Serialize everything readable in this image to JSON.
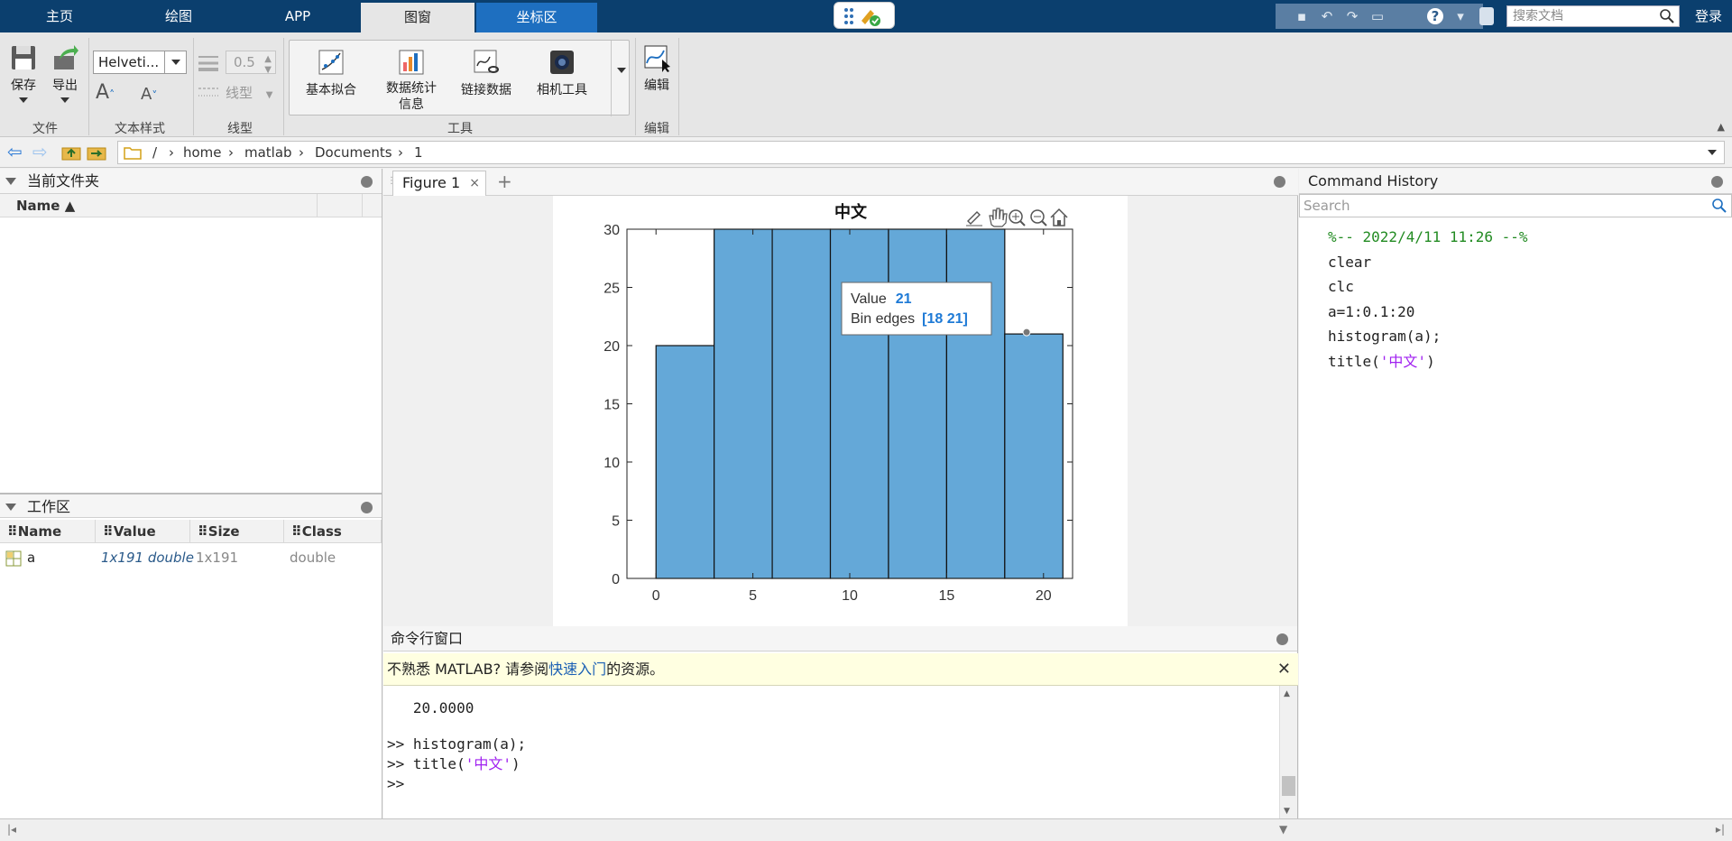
{
  "toptabs": [
    "主页",
    "绘图",
    "APP",
    "图窗",
    "坐标区"
  ],
  "doc_search_placeholder": "搜索文档",
  "login_label": "登录",
  "ribbon": {
    "save_label": "保存",
    "export_label": "导出",
    "file_group": "文件",
    "font_value": "Helveti...",
    "text_style_group": "文本样式",
    "linewidth_value": "0.5",
    "linestyle_label": "线型",
    "line_group": "线型",
    "tools": [
      {
        "label": "基本拟合",
        "label2": ""
      },
      {
        "label": "数据统计",
        "label2": "信息"
      },
      {
        "label": "链接数据",
        "label2": ""
      },
      {
        "label": "相机工具",
        "label2": ""
      }
    ],
    "tools_group": "工具",
    "edit_label": "编辑",
    "edit_group": "编辑"
  },
  "address": {
    "root": "/",
    "parts": [
      "home",
      "matlab",
      "Documents",
      "1"
    ]
  },
  "current_folder": {
    "title": "当前文件夹",
    "name_col": "Name ▲"
  },
  "workspace": {
    "title": "工作区",
    "columns": [
      "Name",
      "Value",
      "Size",
      "Class"
    ],
    "rows": [
      {
        "name": "a",
        "value": "1x191 double",
        "size": "1x191",
        "class": "double"
      }
    ]
  },
  "figure": {
    "tab_label": "Figure 1",
    "close": "×",
    "add": "+"
  },
  "chart_data": {
    "type": "bar",
    "title": "中文",
    "xlabel": "",
    "ylabel": "",
    "bin_edges": [
      0,
      3,
      6,
      9,
      12,
      15,
      18,
      21
    ],
    "values": [
      20,
      30,
      30,
      30,
      30,
      30,
      21
    ],
    "xlim": [
      -1.5,
      21.5
    ],
    "ylim": [
      0,
      30
    ],
    "xticks": [
      "0",
      "5",
      "10",
      "15",
      "20"
    ],
    "yticks": [
      "0",
      "5",
      "10",
      "15",
      "20",
      "25",
      "30"
    ],
    "bar_color": "#64a8d8",
    "datatip": {
      "value_label": "Value",
      "value": "21",
      "edges_label": "Bin edges",
      "edges": "[18 21]"
    }
  },
  "command_window": {
    "title": "命令行窗口",
    "banner_pre": "不熟悉 MATLAB? 请参阅",
    "banner_link": "快速入门",
    "banner_post": "的资源。",
    "lines": [
      "   20.0000",
      "",
      ">> histogram(a);",
      ">> title('中文')",
      ">>"
    ]
  },
  "history": {
    "title": "Command History",
    "search_placeholder": "Search",
    "lines": [
      "%-- 2022/4/11 11:26 --%",
      "clear",
      "clc",
      "a=1:0.1:20",
      "histogram(a);",
      "title('中文')"
    ]
  }
}
